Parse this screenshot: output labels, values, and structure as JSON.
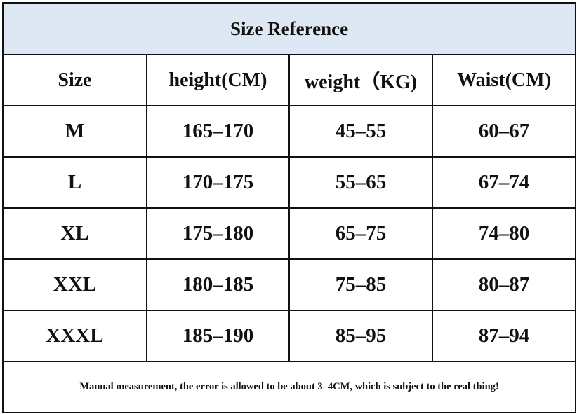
{
  "title": "Size Reference",
  "table": {
    "header": [
      "Size",
      "height(CM)",
      "weight（KG)",
      "Waist(CM)"
    ],
    "rows": [
      [
        "M",
        "165–170",
        "45–55",
        "60–67"
      ],
      [
        "L",
        "170–175",
        "55–65",
        "67–74"
      ],
      [
        "XL",
        "175–180",
        "65–75",
        "74–80"
      ],
      [
        "XXL",
        "180–185",
        "75–85",
        "80–87"
      ],
      [
        "XXXL",
        "185–190",
        "85–95",
        "87–94"
      ]
    ]
  },
  "note": "Manual measurement, the error is allowed to be about 3–4CM, which is subject to the real thing!"
}
